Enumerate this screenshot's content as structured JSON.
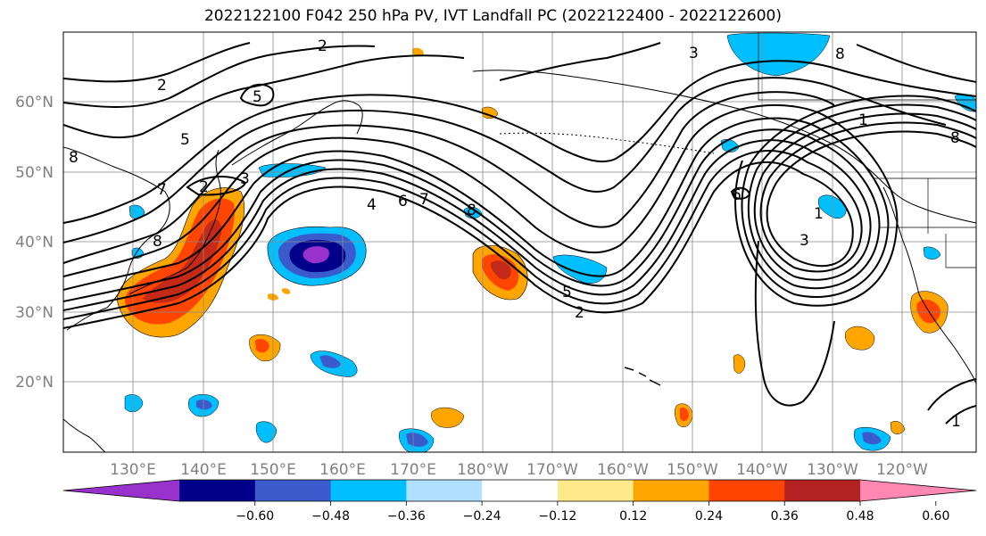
{
  "title": "2022122100 F042 250 hPa PV, IVT Landfall PC (2022122400 - 2022122600)",
  "lat_labels": [
    "20°N",
    "30°N",
    "40°N",
    "50°N",
    "60°N"
  ],
  "lon_labels": [
    "130°E",
    "140°E",
    "150°E",
    "160°E",
    "170°E",
    "180°W",
    "170°W",
    "160°W",
    "150°W",
    "140°W",
    "130°W",
    "120°W"
  ],
  "contour_labels": [
    "2",
    "2",
    "5",
    "3",
    "8",
    "8",
    "5",
    "7",
    "2",
    "3",
    "8",
    "4",
    "6",
    "7",
    "8",
    "6",
    "1",
    "3",
    "5",
    "2",
    "1",
    "8",
    "1"
  ],
  "colorbar": {
    "colors": [
      "#9932cc",
      "#00008b",
      "#3b5bcc",
      "#00bfff",
      "#b0e0ff",
      "#ffffff",
      "#ffe98a",
      "#ffa500",
      "#ff4500",
      "#b22222",
      "#ff88b0"
    ],
    "tick_labels": [
      "−0.60",
      "−0.48",
      "−0.36",
      "−0.24",
      "−0.12",
      "0.12",
      "0.24",
      "0.36",
      "0.48",
      "0.60"
    ]
  }
}
